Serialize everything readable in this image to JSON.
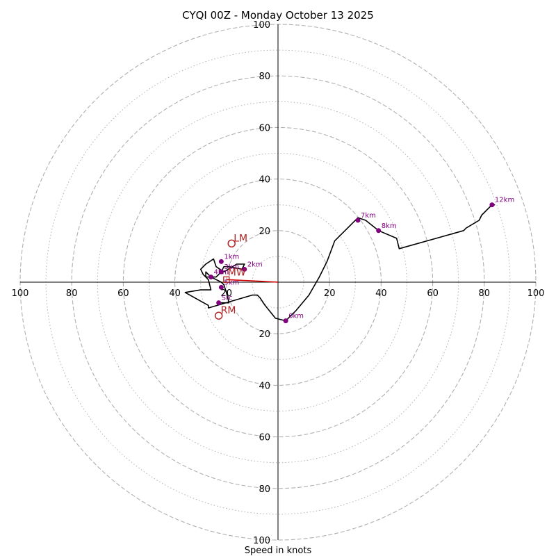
{
  "chart_data": {
    "type": "hodograph",
    "title": "CYQI 00Z - Monday October 13 2025",
    "xlabel": "Speed in knots",
    "range": 100,
    "rings_major": [
      20,
      40,
      60,
      80,
      100
    ],
    "rings_minor": [
      10,
      30,
      50,
      70,
      90
    ],
    "tick_values": [
      20,
      40,
      60,
      80,
      100
    ],
    "tick_labels": [
      "20",
      "40",
      "60",
      "80",
      "100"
    ],
    "wind_trace": [
      [
        -23,
        -8
      ],
      [
        -19,
        -8
      ],
      [
        -20,
        -4
      ],
      [
        -21,
        -1
      ],
      [
        -22,
        0
      ],
      [
        -24,
        1
      ],
      [
        -26,
        2
      ],
      [
        -28,
        4
      ],
      [
        -28,
        2
      ],
      [
        -26,
        2
      ],
      [
        -24,
        2
      ],
      [
        -22,
        4
      ],
      [
        -21,
        6
      ],
      [
        -19,
        6
      ],
      [
        -14,
        5
      ],
      [
        -13,
        7
      ],
      [
        -16,
        7
      ],
      [
        -21,
        4
      ],
      [
        -24,
        6
      ],
      [
        -25,
        9
      ],
      [
        -28,
        7
      ],
      [
        -30,
        5
      ],
      [
        -29,
        3
      ],
      [
        -27,
        1
      ],
      [
        -26,
        -3
      ],
      [
        -30,
        -3
      ],
      [
        -36,
        -4
      ],
      [
        -27,
        -9
      ],
      [
        -27,
        -10
      ],
      [
        -10,
        -5
      ],
      [
        -8,
        -5
      ],
      [
        -7,
        -6
      ],
      [
        -5,
        -9
      ],
      [
        -1,
        -14
      ],
      [
        3,
        -15
      ],
      [
        7,
        -11
      ],
      [
        12,
        -5
      ],
      [
        16,
        2
      ],
      [
        19,
        8
      ],
      [
        22,
        16
      ],
      [
        27,
        21
      ],
      [
        31,
        25
      ],
      [
        34,
        24
      ],
      [
        39,
        20
      ],
      [
        46,
        17
      ],
      [
        47,
        13
      ],
      [
        72,
        20
      ],
      [
        73,
        21
      ],
      [
        78,
        24
      ],
      [
        79,
        26
      ],
      [
        83,
        30
      ],
      [
        84,
        30
      ],
      [
        83,
        30
      ]
    ],
    "height_markers": [
      {
        "label": "Src",
        "u": -23,
        "v": -8
      },
      {
        "label": "1km",
        "u": -22,
        "v": 8
      },
      {
        "label": "2km",
        "u": -13,
        "v": 5
      },
      {
        "label": "3km",
        "u": -22,
        "v": 4
      },
      {
        "label": "4km",
        "u": -26,
        "v": 2
      },
      {
        "label": "5km",
        "u": -22,
        "v": -2
      },
      {
        "label": "6km",
        "u": 3,
        "v": -15
      },
      {
        "label": "7km",
        "u": 31,
        "v": 24
      },
      {
        "label": "8km",
        "u": 39,
        "v": 20
      },
      {
        "label": "12km",
        "u": 83,
        "v": 30
      }
    ],
    "storm_motion": [
      {
        "label": "LM",
        "u": -18,
        "v": 15
      },
      {
        "label": "RM",
        "u": -23,
        "v": -13
      }
    ],
    "mean_wind": {
      "label": "MW",
      "u": -20,
      "v": 1
    },
    "bunkers_vector": {
      "u": -20,
      "v": 1
    },
    "colors": {
      "trace": "#000000",
      "marker": "#800080",
      "storm": "#b22222",
      "vector": "#d40000",
      "grid": "#b0b0b0",
      "axis": "#000000"
    }
  }
}
